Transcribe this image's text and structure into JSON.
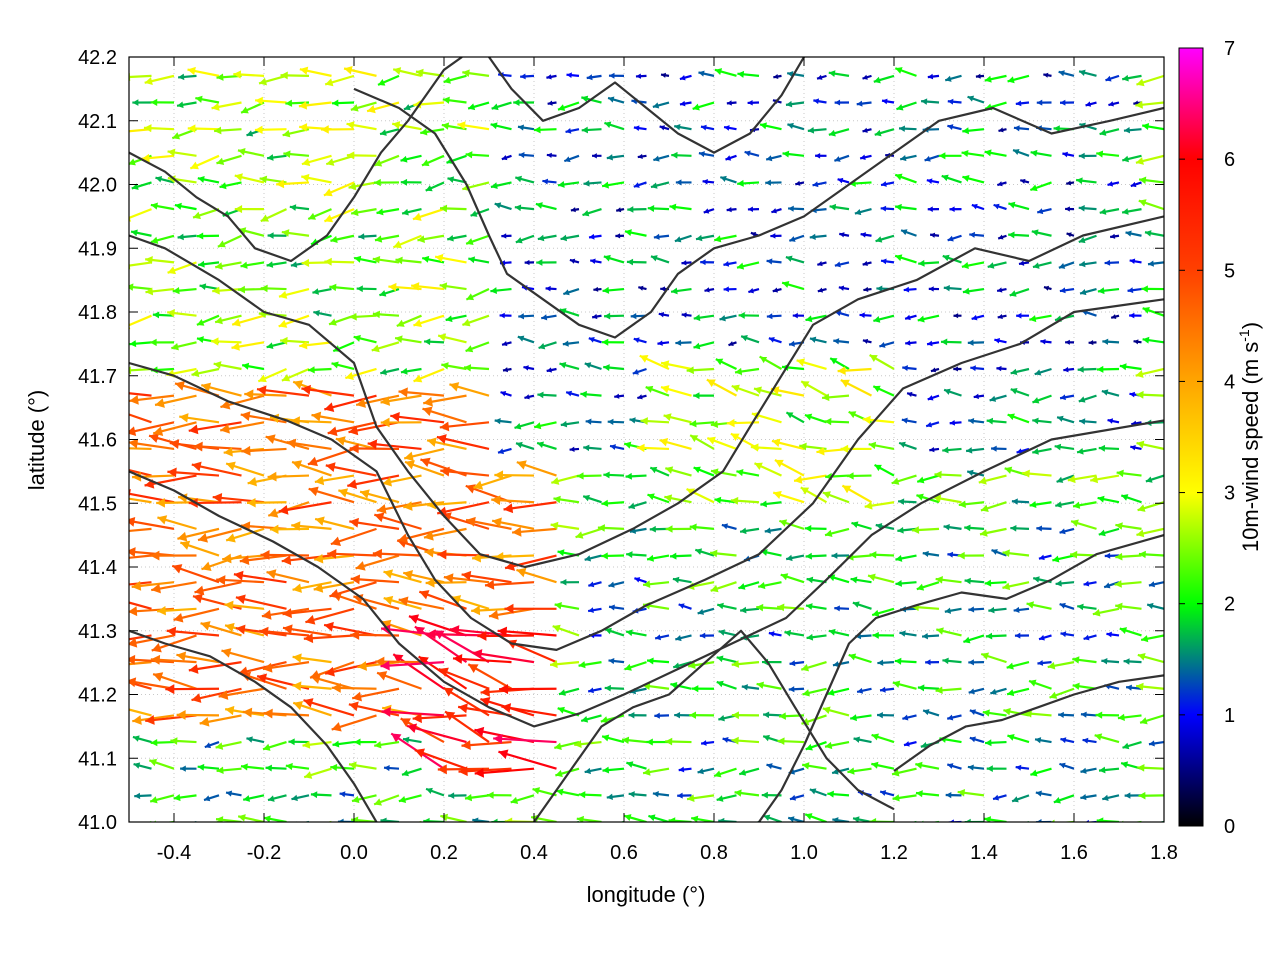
{
  "chart_data": {
    "type": "vector-field",
    "title": "",
    "xlabel": "longitude (°)",
    "ylabel": "latitude (°)",
    "xlim": [
      -0.5,
      1.8
    ],
    "ylim": [
      41.0,
      42.2
    ],
    "grid": true,
    "x_ticks": [
      "-0.4",
      "-0.2",
      "0.0",
      "0.2",
      "0.4",
      "0.6",
      "0.8",
      "1.0",
      "1.2",
      "1.4",
      "1.6",
      "1.8"
    ],
    "x_tick_values": [
      -0.4,
      -0.2,
      0.0,
      0.2,
      0.4,
      0.6,
      0.8,
      1.0,
      1.2,
      1.4,
      1.6,
      1.8
    ],
    "y_ticks": [
      "41.0",
      "41.1",
      "41.2",
      "41.3",
      "41.4",
      "41.5",
      "41.6",
      "41.7",
      "41.8",
      "41.9",
      "42.0",
      "42.1",
      "42.2"
    ],
    "y_tick_values": [
      41.0,
      41.1,
      41.2,
      41.3,
      41.4,
      41.5,
      41.6,
      41.7,
      41.8,
      41.9,
      42.0,
      42.1,
      42.2
    ],
    "colorbar": {
      "label_main": "10m-wind speed (m s",
      "label_sup": "-1",
      "label_end": ")",
      "range": [
        0,
        7
      ],
      "ticks": [
        "0",
        "1",
        "2",
        "3",
        "4",
        "5",
        "6",
        "7"
      ],
      "tick_values": [
        0,
        1,
        2,
        3,
        4,
        5,
        6,
        7
      ],
      "stops": [
        {
          "v": 0.0,
          "color": "#000000"
        },
        {
          "v": 1.0,
          "color": "#0000ff"
        },
        {
          "v": 1.5,
          "color": "#008080"
        },
        {
          "v": 2.0,
          "color": "#00ff00"
        },
        {
          "v": 3.0,
          "color": "#ffff00"
        },
        {
          "v": 4.0,
          "color": "#ffa500"
        },
        {
          "v": 5.0,
          "color": "#ff4000"
        },
        {
          "v": 6.0,
          "color": "#ff0000"
        },
        {
          "v": 7.0,
          "color": "#ff00ff"
        }
      ]
    },
    "regions": [
      {
        "lon": [
          -0.5,
          0.45
        ],
        "lat": [
          41.15,
          41.7
        ],
        "speed": 4.6,
        "dir_deg": 180
      },
      {
        "lon": [
          0.15,
          0.45
        ],
        "lat": [
          41.05,
          41.3
        ],
        "speed": 5.6,
        "dir_deg": 165
      },
      {
        "lon": [
          -0.5,
          0.3
        ],
        "lat": [
          41.7,
          42.2
        ],
        "speed": 2.4,
        "dir_deg": 185
      },
      {
        "lon": [
          0.3,
          1.8
        ],
        "lat": [
          41.55,
          42.2
        ],
        "speed": 1.3,
        "dir_deg": 180
      },
      {
        "lon": [
          0.7,
          1.25
        ],
        "lat": [
          41.35,
          41.75
        ],
        "speed": 2.6,
        "dir_deg": 170
      },
      {
        "lon": [
          1.2,
          1.8
        ],
        "lat": [
          41.0,
          41.2
        ],
        "speed": 3.3,
        "dir_deg": 200
      },
      {
        "lon": [
          0.5,
          1.8
        ],
        "lat": [
          41.0,
          41.5
        ],
        "speed": 1.8,
        "dir_deg": 180
      }
    ],
    "terrain_contours": [
      [
        [
          -0.5,
          41.92
        ],
        [
          -0.42,
          41.9
        ],
        [
          -0.3,
          41.85
        ],
        [
          -0.2,
          41.8
        ],
        [
          -0.1,
          41.78
        ],
        [
          0.0,
          41.72
        ],
        [
          0.05,
          41.62
        ],
        [
          0.12,
          41.55
        ],
        [
          0.2,
          41.48
        ],
        [
          0.28,
          41.42
        ],
        [
          0.38,
          41.4
        ],
        [
          0.5,
          41.42
        ],
        [
          0.62,
          41.46
        ],
        [
          0.72,
          41.5
        ],
        [
          0.82,
          41.55
        ],
        [
          0.88,
          41.62
        ],
        [
          0.95,
          41.7
        ],
        [
          1.02,
          41.78
        ],
        [
          1.12,
          41.82
        ],
        [
          1.25,
          41.85
        ],
        [
          1.38,
          41.9
        ],
        [
          1.5,
          41.88
        ],
        [
          1.62,
          41.92
        ],
        [
          1.8,
          41.95
        ]
      ],
      [
        [
          -0.5,
          41.72
        ],
        [
          -0.4,
          41.7
        ],
        [
          -0.28,
          41.66
        ],
        [
          -0.15,
          41.63
        ],
        [
          -0.05,
          41.6
        ],
        [
          0.05,
          41.55
        ],
        [
          0.12,
          41.45
        ],
        [
          0.18,
          41.38
        ],
        [
          0.26,
          41.32
        ],
        [
          0.35,
          41.28
        ],
        [
          0.45,
          41.27
        ],
        [
          0.55,
          41.3
        ],
        [
          0.65,
          41.34
        ],
        [
          0.78,
          41.38
        ],
        [
          0.9,
          41.42
        ],
        [
          1.02,
          41.5
        ],
        [
          1.12,
          41.6
        ],
        [
          1.22,
          41.68
        ],
        [
          1.35,
          41.72
        ],
        [
          1.48,
          41.75
        ],
        [
          1.6,
          41.8
        ],
        [
          1.8,
          41.82
        ]
      ],
      [
        [
          -0.5,
          41.55
        ],
        [
          -0.4,
          41.52
        ],
        [
          -0.3,
          41.48
        ],
        [
          -0.18,
          41.44
        ],
        [
          -0.08,
          41.4
        ],
        [
          0.02,
          41.35
        ],
        [
          0.1,
          41.28
        ],
        [
          0.2,
          41.22
        ],
        [
          0.3,
          41.18
        ],
        [
          0.4,
          41.15
        ],
        [
          0.5,
          41.17
        ],
        [
          0.6,
          41.2
        ],
        [
          0.72,
          41.24
        ],
        [
          0.84,
          41.28
        ],
        [
          0.96,
          41.32
        ],
        [
          1.05,
          41.38
        ],
        [
          1.15,
          41.45
        ],
        [
          1.26,
          41.5
        ],
        [
          1.4,
          41.55
        ],
        [
          1.55,
          41.6
        ],
        [
          1.8,
          41.63
        ]
      ],
      [
        [
          0.0,
          42.15
        ],
        [
          0.1,
          42.12
        ],
        [
          0.18,
          42.08
        ],
        [
          0.25,
          42.0
        ],
        [
          0.3,
          41.92
        ],
        [
          0.34,
          41.86
        ],
        [
          0.42,
          41.82
        ],
        [
          0.5,
          41.78
        ],
        [
          0.58,
          41.76
        ],
        [
          0.66,
          41.8
        ],
        [
          0.72,
          41.86
        ],
        [
          0.8,
          41.9
        ],
        [
          0.9,
          41.92
        ],
        [
          1.0,
          41.95
        ],
        [
          1.1,
          42.0
        ],
        [
          1.2,
          42.05
        ],
        [
          1.3,
          42.1
        ],
        [
          1.42,
          42.12
        ],
        [
          1.55,
          42.08
        ],
        [
          1.68,
          42.1
        ],
        [
          1.8,
          42.12
        ]
      ],
      [
        [
          0.4,
          41.0
        ],
        [
          0.45,
          41.05
        ],
        [
          0.5,
          41.1
        ],
        [
          0.55,
          41.15
        ],
        [
          0.62,
          41.18
        ],
        [
          0.7,
          41.2
        ],
        [
          0.78,
          41.25
        ],
        [
          0.86,
          41.3
        ],
        [
          0.92,
          41.25
        ],
        [
          0.98,
          41.18
        ],
        [
          1.05,
          41.1
        ],
        [
          1.12,
          41.05
        ],
        [
          1.2,
          41.02
        ]
      ],
      [
        [
          0.9,
          41.0
        ],
        [
          0.95,
          41.05
        ],
        [
          1.0,
          41.12
        ],
        [
          1.05,
          41.2
        ],
        [
          1.1,
          41.28
        ],
        [
          1.16,
          41.32
        ],
        [
          1.25,
          41.34
        ],
        [
          1.35,
          41.36
        ],
        [
          1.45,
          41.35
        ],
        [
          1.55,
          41.38
        ],
        [
          1.65,
          41.42
        ],
        [
          1.8,
          41.45
        ]
      ],
      [
        [
          1.2,
          41.08
        ],
        [
          1.28,
          41.12
        ],
        [
          1.36,
          41.15
        ],
        [
          1.44,
          41.16
        ],
        [
          1.52,
          41.18
        ],
        [
          1.6,
          41.2
        ],
        [
          1.7,
          41.22
        ],
        [
          1.8,
          41.23
        ]
      ],
      [
        [
          -0.5,
          41.3
        ],
        [
          -0.42,
          41.28
        ],
        [
          -0.32,
          41.26
        ],
        [
          -0.22,
          41.22
        ],
        [
          -0.14,
          41.18
        ],
        [
          -0.06,
          41.12
        ],
        [
          0.0,
          41.06
        ],
        [
          0.05,
          41.0
        ]
      ],
      [
        [
          0.3,
          42.2
        ],
        [
          0.35,
          42.15
        ],
        [
          0.42,
          42.1
        ],
        [
          0.5,
          42.12
        ],
        [
          0.58,
          42.16
        ],
        [
          0.65,
          42.12
        ],
        [
          0.72,
          42.08
        ],
        [
          0.8,
          42.05
        ],
        [
          0.88,
          42.08
        ],
        [
          0.95,
          42.14
        ],
        [
          1.0,
          42.2
        ]
      ],
      [
        [
          -0.5,
          42.05
        ],
        [
          -0.42,
          42.02
        ],
        [
          -0.35,
          41.98
        ],
        [
          -0.28,
          41.95
        ],
        [
          -0.22,
          41.9
        ],
        [
          -0.14,
          41.88
        ],
        [
          -0.06,
          41.92
        ],
        [
          0.0,
          41.98
        ],
        [
          0.06,
          42.05
        ],
        [
          0.12,
          42.1
        ],
        [
          0.2,
          42.18
        ],
        [
          0.24,
          42.2
        ]
      ]
    ]
  }
}
